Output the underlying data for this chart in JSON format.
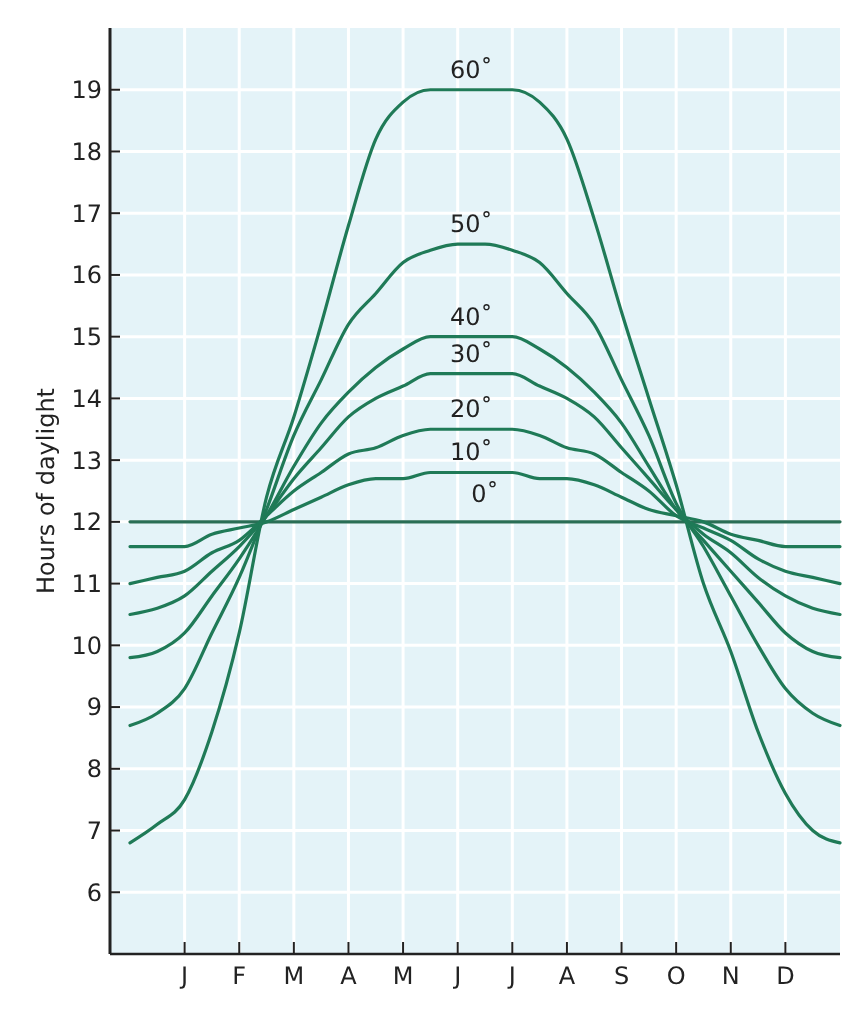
{
  "chart_data": {
    "type": "line",
    "ylabel": "Hours of daylight",
    "categories": [
      null,
      null,
      "J",
      null,
      "F",
      null,
      "M",
      null,
      "A",
      null,
      "M",
      null,
      "J",
      null,
      "J",
      null,
      "A",
      null,
      "S",
      null,
      "O",
      null,
      "N",
      null,
      "D",
      null,
      null
    ],
    "ylim": [
      5,
      20
    ],
    "yticks": [
      6,
      7,
      8,
      9,
      10,
      11,
      12,
      13,
      14,
      15,
      16,
      17,
      18,
      19
    ],
    "grid": true,
    "marker": "none",
    "line_style": "solid",
    "series": [
      {
        "name": "0˚",
        "color": "#2a6e55",
        "values": [
          12,
          12,
          12,
          12,
          12,
          12,
          12,
          12,
          12,
          12,
          12,
          12,
          12,
          12,
          12,
          12,
          12,
          12,
          12,
          12,
          12,
          12,
          12,
          12,
          12,
          12,
          12
        ]
      },
      {
        "name": "10˚",
        "color": "#1f7a57",
        "values": [
          11.6,
          11.6,
          11.6,
          11.8,
          11.9,
          12.0,
          12.2,
          12.4,
          12.6,
          12.7,
          12.7,
          12.8,
          12.8,
          12.8,
          12.8,
          12.7,
          12.7,
          12.6,
          12.4,
          12.2,
          12.1,
          12,
          11.8,
          11.7,
          11.6,
          11.6,
          11.6
        ]
      },
      {
        "name": "20˚",
        "color": "#1f7a57",
        "values": [
          11.0,
          11.1,
          11.2,
          11.5,
          11.7,
          12.1,
          12.5,
          12.8,
          13.1,
          13.2,
          13.4,
          13.5,
          13.5,
          13.5,
          13.5,
          13.4,
          13.2,
          13.1,
          12.8,
          12.5,
          12.1,
          11.9,
          11.7,
          11.4,
          11.2,
          11.1,
          11.0
        ]
      },
      {
        "name": "30˚",
        "color": "#1f7a57",
        "values": [
          10.5,
          10.6,
          10.8,
          11.2,
          11.6,
          12.1,
          12.7,
          13.2,
          13.7,
          14.0,
          14.2,
          14.4,
          14.4,
          14.4,
          14.4,
          14.2,
          14.0,
          13.7,
          13.2,
          12.7,
          12.2,
          11.8,
          11.5,
          11.1,
          10.8,
          10.6,
          10.5
        ]
      },
      {
        "name": "40˚",
        "color": "#1f7a57",
        "values": [
          9.8,
          9.9,
          10.2,
          10.8,
          11.4,
          12.1,
          12.9,
          13.6,
          14.1,
          14.5,
          14.8,
          15.0,
          15.0,
          15.0,
          15.0,
          14.8,
          14.5,
          14.1,
          13.6,
          12.9,
          12.2,
          11.7,
          11.2,
          10.7,
          10.2,
          9.9,
          9.8
        ]
      },
      {
        "name": "50˚",
        "color": "#1f7a57",
        "values": [
          8.7,
          8.9,
          9.3,
          10.2,
          11.1,
          12.2,
          13.4,
          14.3,
          15.2,
          15.7,
          16.2,
          16.4,
          16.5,
          16.5,
          16.4,
          16.2,
          15.7,
          15.2,
          14.3,
          13.4,
          12.3,
          11.6,
          10.8,
          10.0,
          9.3,
          8.9,
          8.7
        ]
      },
      {
        "name": "60˚",
        "color": "#1f7a57",
        "values": [
          6.8,
          7.1,
          7.5,
          8.6,
          10.2,
          12.4,
          13.7,
          15.2,
          16.8,
          18.2,
          18.8,
          19.0,
          19.0,
          19.0,
          19.0,
          18.8,
          18.2,
          16.9,
          15.4,
          14.0,
          12.6,
          11.0,
          9.9,
          8.6,
          7.6,
          7.0,
          6.8
        ]
      }
    ]
  }
}
